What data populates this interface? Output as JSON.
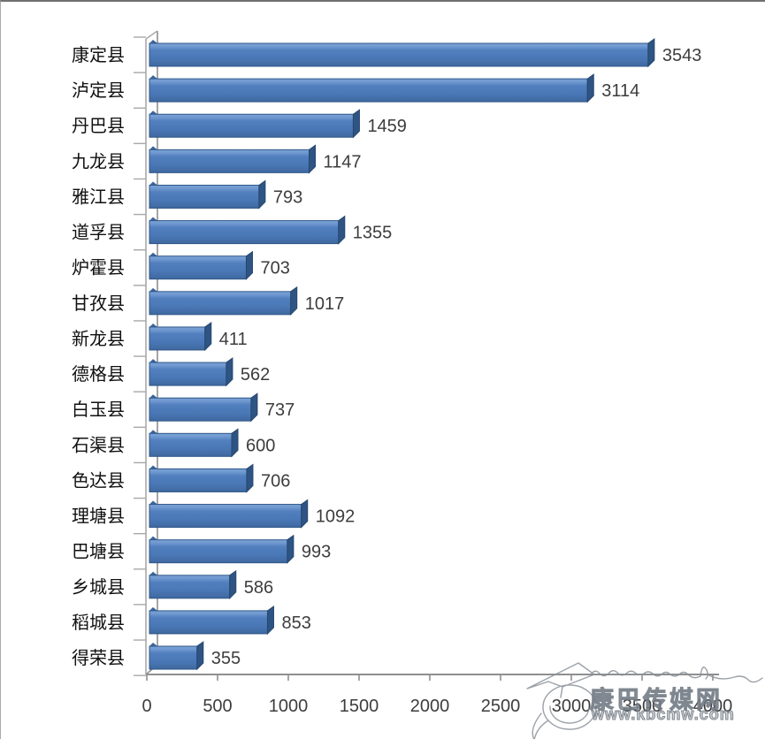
{
  "chart_data": {
    "type": "bar",
    "orientation": "horizontal",
    "title": "",
    "xlabel": "",
    "ylabel": "",
    "categories": [
      "康定县",
      "泸定县",
      "丹巴县",
      "九龙县",
      "雅江县",
      "道孚县",
      "炉霍县",
      "甘孜县",
      "新龙县",
      "德格县",
      "白玉县",
      "石渠县",
      "色达县",
      "理塘县",
      "巴塘县",
      "乡城县",
      "稻城县",
      "得荣县"
    ],
    "values": [
      3543,
      3114,
      1459,
      1147,
      793,
      1355,
      703,
      1017,
      411,
      562,
      737,
      600,
      706,
      1092,
      993,
      586,
      853,
      355
    ],
    "value_labels_shown": true,
    "xlim": [
      0,
      4000
    ],
    "x_ticks": [
      0,
      500,
      1000,
      1500,
      2000,
      2500,
      3000,
      3500,
      4000
    ],
    "grid": false,
    "legend": false,
    "style": "3d-box-bars",
    "colors": {
      "bar_face": "#4d7ec0",
      "bar_face_light": "#769ed3",
      "bar_face_dark": "#3f689f",
      "bar_cap": "#2e5484",
      "bar_outline": "#2f5788",
      "axis_line": "#8f8f8f",
      "axis_back_line": "#a8a8a8",
      "label_text": "#3d3d3d",
      "category_text": "#101010"
    }
  },
  "watermark": {
    "site_name": "康巴传媒网",
    "url": "www.kbcmw.com"
  }
}
